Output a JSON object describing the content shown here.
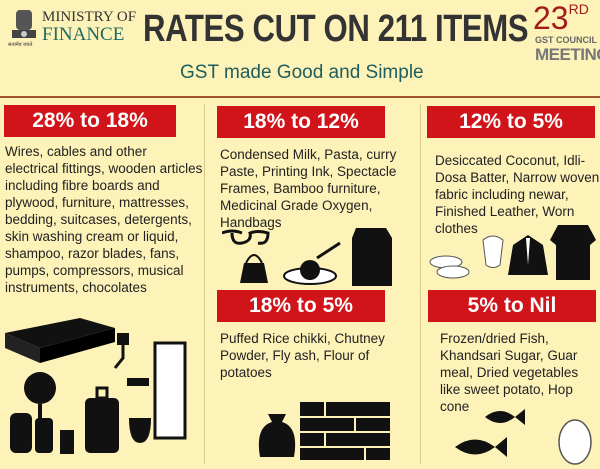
{
  "header": {
    "ministry_line1": "MINISTRY OF",
    "ministry_line2": "FINANCE",
    "emblem_caption": "सत्यमेव जयते",
    "title": "RATES CUT ON 211 ITEMS",
    "subtitle": "GST made Good and Simple",
    "meeting_number": "23",
    "meeting_suffix": "RD",
    "meeting_line1": "GST COUNCIL",
    "meeting_line2": "MEETING"
  },
  "sections": [
    {
      "rate": "28% to 18%",
      "items": "Wires, cables and other electrical fittings, wooden articles including fibre boards and plywood, furniture, mattresses, bedding, suitcases, detergents, skin washing cream or liquid, shampoo, razor blades, fans, pumps, compressors, musical instruments, chocolates"
    },
    {
      "rate": "18% to 12%",
      "items": "Condensed Milk, Pasta, curry Paste, Printing Ink, Spectacle Frames, Bamboo furniture, Medicinal Grade Oxygen, Handbags"
    },
    {
      "rate": "12% to 5%",
      "items": "Desiccated Coconut, Idli-Dosa Batter, Narrow woven fabric including newar, Finished Leather, Worn clothes"
    },
    {
      "rate": "18% to 5%",
      "items": "Puffed Rice chikki, Chutney Powder, Fly ash, Flour of potatoes"
    },
    {
      "rate": "5% to Nil",
      "items": "Frozen/dried Fish, Khandsari Sugar, Guar meal, Dried vegetables like sweet potato, Hop cone"
    }
  ],
  "colors": {
    "background": "#fdf2b8",
    "badge": "#d0141a",
    "title": "#333333",
    "subtitle": "#1e5e5e"
  }
}
